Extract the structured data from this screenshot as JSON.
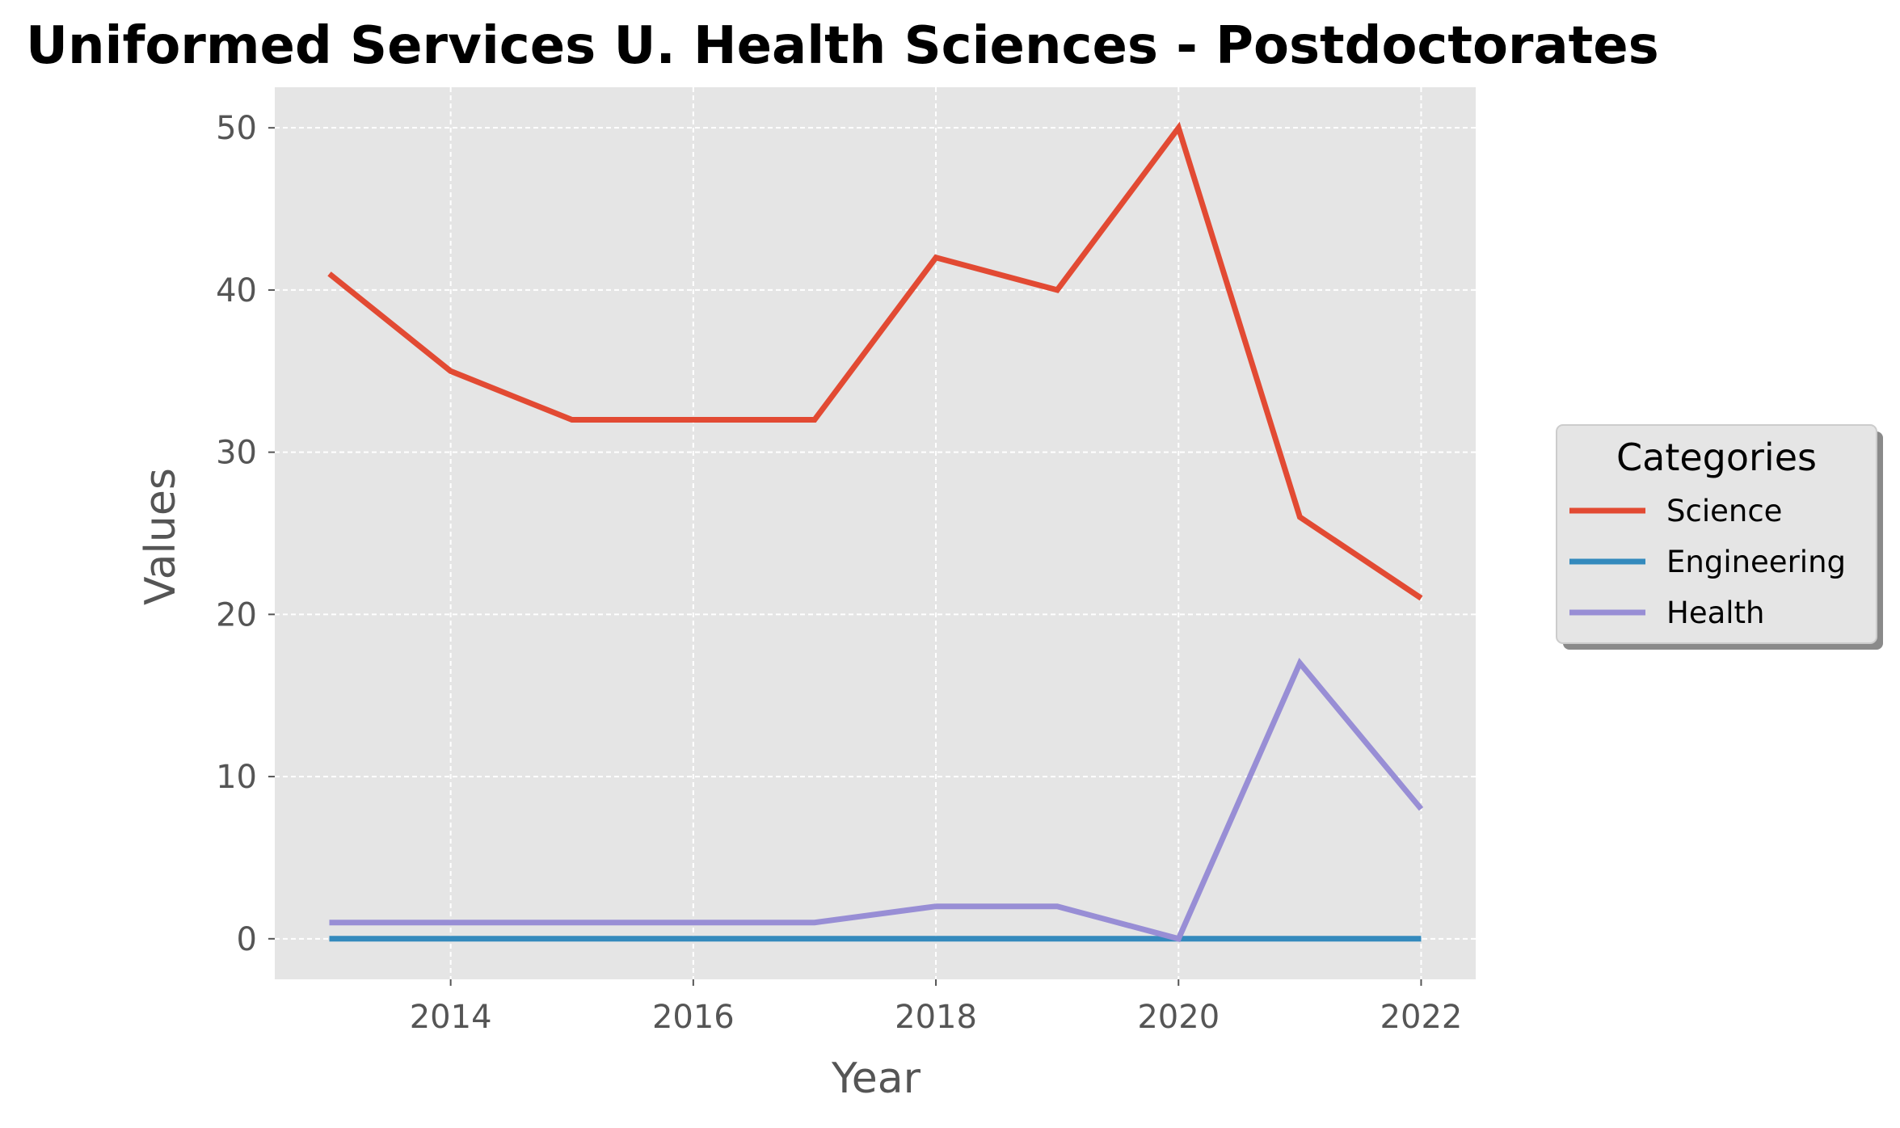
{
  "chart_data": {
    "type": "line",
    "title": "Uniformed Services U. Health Sciences - Postdoctorates",
    "xlabel": "Year",
    "ylabel": "Values",
    "x": [
      2013,
      2014,
      2015,
      2016,
      2017,
      2018,
      2019,
      2020,
      2021,
      2022
    ],
    "xlim": [
      2012.55,
      2022.45
    ],
    "ylim": [
      -2.5,
      52.5
    ],
    "xticks": [
      2014,
      2016,
      2018,
      2020,
      2022
    ],
    "yticks": [
      0,
      10,
      20,
      30,
      40,
      50
    ],
    "grid": true,
    "legend": {
      "title": "Categories",
      "placement": "center-right, outside plot"
    },
    "series": [
      {
        "name": "Science",
        "color": "#E24A33",
        "values": [
          41,
          35,
          32,
          32,
          32,
          42,
          40,
          50,
          26,
          21
        ]
      },
      {
        "name": "Engineering",
        "color": "#348ABD",
        "values": [
          0,
          0,
          0,
          0,
          0,
          0,
          0,
          0,
          0,
          0
        ]
      },
      {
        "name": "Health",
        "color": "#988ED5",
        "values": [
          1,
          1,
          1,
          1,
          1,
          2,
          2,
          0,
          17,
          8
        ]
      }
    ]
  },
  "colors": {
    "plot_background": "#E5E5E5",
    "grid": "#FFFFFF",
    "legend_background": "#E5E5E5"
  }
}
